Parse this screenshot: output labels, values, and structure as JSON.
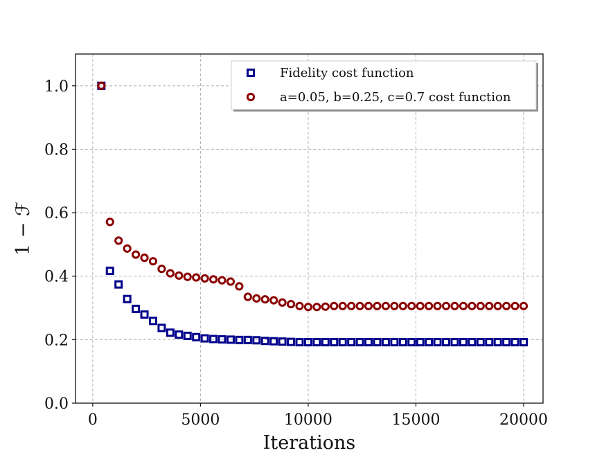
{
  "chart_data": {
    "type": "scatter",
    "title": "",
    "xlabel": "Iterations",
    "ylabel": "1 − ℱ",
    "xlim": [
      -800,
      20900
    ],
    "ylim": [
      0.0,
      1.1
    ],
    "xticks": [
      0,
      5000,
      10000,
      15000,
      20000
    ],
    "xtick_labels": [
      "0",
      "5000",
      "10000",
      "15000",
      "20000"
    ],
    "yticks": [
      0.0,
      0.2,
      0.4,
      0.6,
      0.8,
      1.0
    ],
    "ytick_labels": [
      "0.0",
      "0.2",
      "0.4",
      "0.6",
      "0.8",
      "1.0"
    ],
    "grid": true,
    "legend_position": "top-right",
    "x": [
      400,
      800,
      1200,
      1600,
      2000,
      2400,
      2800,
      3200,
      3600,
      4000,
      4400,
      4800,
      5200,
      5600,
      6000,
      6400,
      6800,
      7200,
      7600,
      8000,
      8400,
      8800,
      9200,
      9600,
      10000,
      10400,
      10800,
      11200,
      11600,
      12000,
      12400,
      12800,
      13200,
      13600,
      14000,
      14400,
      14800,
      15200,
      15600,
      16000,
      16400,
      16800,
      17200,
      17600,
      18000,
      18400,
      18800,
      19200,
      19600,
      20000
    ],
    "series": [
      {
        "name": "Fidelity cost function",
        "marker": "square",
        "color": "#00008b",
        "values": [
          1.0,
          0.417,
          0.374,
          0.328,
          0.297,
          0.279,
          0.259,
          0.237,
          0.222,
          0.216,
          0.212,
          0.208,
          0.204,
          0.202,
          0.201,
          0.2,
          0.199,
          0.199,
          0.198,
          0.196,
          0.195,
          0.194,
          0.193,
          0.192,
          0.192,
          0.192,
          0.192,
          0.192,
          0.192,
          0.192,
          0.192,
          0.192,
          0.192,
          0.192,
          0.192,
          0.192,
          0.192,
          0.192,
          0.192,
          0.192,
          0.192,
          0.192,
          0.192,
          0.192,
          0.192,
          0.192,
          0.192,
          0.192,
          0.192,
          0.192
        ]
      },
      {
        "name": "a=0.05, b=0.25, c=0.7 cost function",
        "marker": "circle",
        "color": "#8b0000",
        "values": [
          1.0,
          0.571,
          0.512,
          0.487,
          0.468,
          0.458,
          0.447,
          0.423,
          0.409,
          0.402,
          0.398,
          0.396,
          0.393,
          0.39,
          0.387,
          0.383,
          0.368,
          0.335,
          0.33,
          0.327,
          0.324,
          0.317,
          0.312,
          0.306,
          0.303,
          0.303,
          0.304,
          0.306,
          0.306,
          0.306,
          0.306,
          0.306,
          0.306,
          0.306,
          0.306,
          0.306,
          0.306,
          0.306,
          0.306,
          0.306,
          0.306,
          0.306,
          0.306,
          0.306,
          0.306,
          0.306,
          0.306,
          0.306,
          0.306,
          0.306
        ]
      }
    ]
  }
}
